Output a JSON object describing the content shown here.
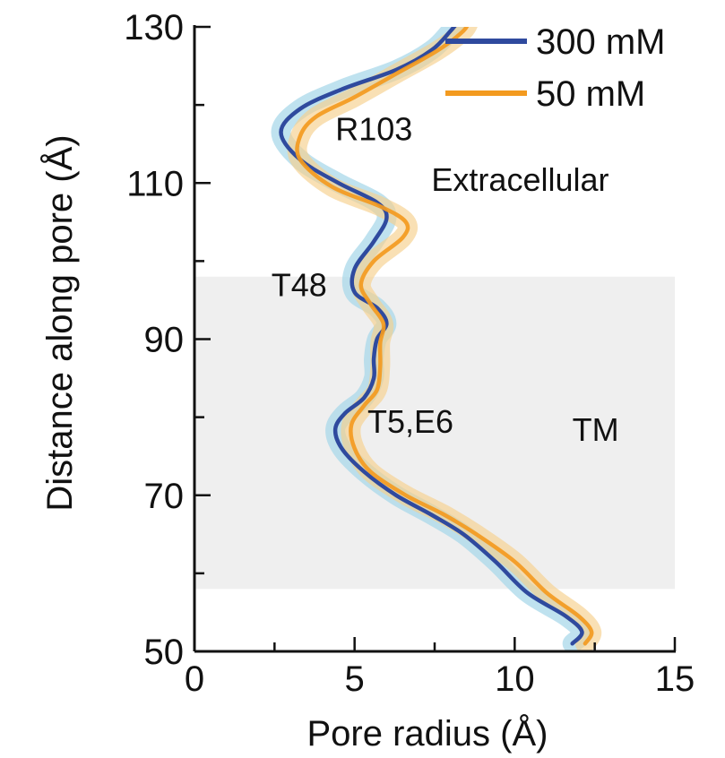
{
  "chart_data": {
    "type": "line",
    "xlabel": "Pore radius (Å)",
    "ylabel": "Distance along pore (Å)",
    "xlim": [
      0,
      15
    ],
    "ylim": [
      50,
      130
    ],
    "x_ticks": [
      0,
      5,
      10,
      15
    ],
    "y_ticks": [
      50,
      70,
      90,
      110,
      130
    ],
    "x_ticks_labels": [
      "0",
      "5",
      "10",
      "15"
    ],
    "y_ticks_labels": [
      "50",
      "70",
      "90",
      "110",
      "130"
    ],
    "legend_position": "top-right",
    "grid": false,
    "shaded_region": {
      "label": "TM",
      "y_range": [
        58,
        98
      ],
      "color": "#efefef"
    },
    "series": [
      {
        "name": "300 mM",
        "color": "#2f4a9e",
        "band_color": "#a9d8ea",
        "points": [
          [
            11.8,
            51
          ],
          [
            12.1,
            52.5
          ],
          [
            11.6,
            54.5
          ],
          [
            10.4,
            57.5
          ],
          [
            9.4,
            61.5
          ],
          [
            8.4,
            65
          ],
          [
            7.4,
            67.5
          ],
          [
            6.3,
            70
          ],
          [
            5.3,
            73
          ],
          [
            4.6,
            76
          ],
          [
            4.4,
            78.5
          ],
          [
            4.7,
            80.5
          ],
          [
            5.3,
            82.5
          ],
          [
            5.6,
            85
          ],
          [
            5.6,
            87.5
          ],
          [
            5.7,
            90
          ],
          [
            6.0,
            92
          ],
          [
            5.7,
            94
          ],
          [
            5.0,
            96
          ],
          [
            5.0,
            99
          ],
          [
            5.6,
            102.5
          ],
          [
            6.0,
            105.5
          ],
          [
            5.7,
            107.5
          ],
          [
            4.5,
            110
          ],
          [
            3.3,
            113
          ],
          [
            2.7,
            116.5
          ],
          [
            3.3,
            119.5
          ],
          [
            4.6,
            122
          ],
          [
            6.3,
            124.5
          ],
          [
            7.4,
            127
          ],
          [
            8.0,
            129.5
          ],
          [
            8.3,
            131
          ]
        ]
      },
      {
        "name": "50 mM",
        "color": "#f39a1f",
        "band_color": "#f6d08c",
        "points": [
          [
            12.2,
            51
          ],
          [
            12.4,
            52.5
          ],
          [
            12.0,
            54.5
          ],
          [
            11.0,
            57.5
          ],
          [
            10.0,
            61.5
          ],
          [
            8.8,
            65
          ],
          [
            7.8,
            67.5
          ],
          [
            6.6,
            70
          ],
          [
            5.5,
            73
          ],
          [
            5.0,
            76
          ],
          [
            4.9,
            79
          ],
          [
            5.3,
            81.5
          ],
          [
            5.7,
            83.5
          ],
          [
            5.8,
            86.5
          ],
          [
            5.8,
            89.5
          ],
          [
            5.9,
            92
          ],
          [
            5.5,
            94.5
          ],
          [
            5.2,
            97
          ],
          [
            5.6,
            100
          ],
          [
            6.5,
            103
          ],
          [
            6.6,
            105
          ],
          [
            5.8,
            107
          ],
          [
            4.3,
            109.5
          ],
          [
            3.3,
            113
          ],
          [
            3.3,
            116
          ],
          [
            3.8,
            118.5
          ],
          [
            5.0,
            121
          ],
          [
            6.3,
            124
          ],
          [
            7.6,
            127
          ],
          [
            8.4,
            129.5
          ],
          [
            8.6,
            131
          ]
        ]
      }
    ],
    "annotations": [
      {
        "text": "R103",
        "x": 4.4,
        "y": 115.5
      },
      {
        "text": "Extracellular",
        "x": 7.4,
        "y": 109
      },
      {
        "text": "T48",
        "x": 2.4,
        "y": 95.5
      },
      {
        "text": "T5,E6",
        "x": 5.4,
        "y": 78
      },
      {
        "text": "TM",
        "x": 11.8,
        "y": 77
      }
    ]
  }
}
